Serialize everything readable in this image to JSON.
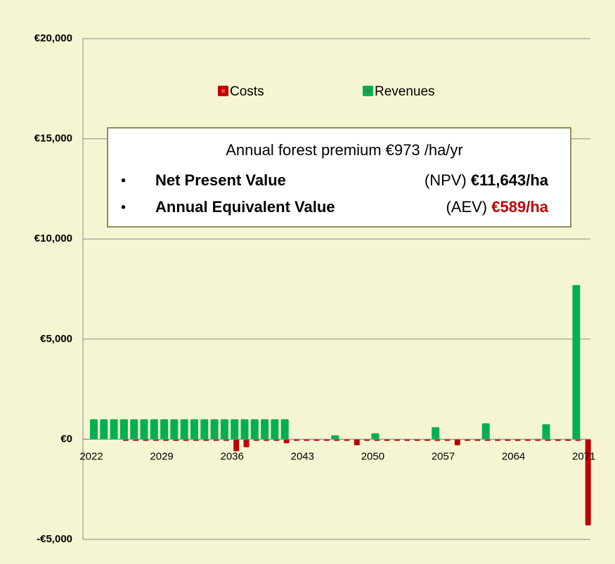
{
  "chart_data": {
    "type": "bar",
    "categories": [
      "2022",
      null,
      null,
      null,
      null,
      null,
      null,
      "2029",
      null,
      null,
      null,
      null,
      null,
      null,
      "2036",
      null,
      null,
      null,
      null,
      null,
      null,
      "2043",
      null,
      null,
      null,
      null,
      null,
      null,
      "2050",
      null,
      null,
      null,
      null,
      null,
      null,
      "2057",
      null,
      null,
      null,
      null,
      null,
      null,
      "2064",
      null,
      null,
      null,
      null,
      null,
      null,
      "2071"
    ],
    "series": [
      {
        "name": "Costs",
        "color": "#c00000",
        "values": [
          0,
          0,
          0,
          -80,
          -80,
          -80,
          -80,
          -80,
          -80,
          -80,
          -80,
          -80,
          -80,
          -80,
          -600,
          -400,
          -80,
          -80,
          -80,
          -200,
          -80,
          -80,
          -80,
          -80,
          -80,
          -80,
          -300,
          -80,
          -80,
          -80,
          -80,
          -80,
          -80,
          -80,
          -80,
          -80,
          -300,
          -80,
          -80,
          -80,
          -80,
          -80,
          -80,
          -80,
          -80,
          -80,
          -80,
          -80,
          -80,
          -4300
        ]
      },
      {
        "name": "Revenues",
        "color": "#00b050",
        "values": [
          1000,
          1000,
          1000,
          1000,
          1000,
          1000,
          1000,
          1000,
          1000,
          1000,
          1000,
          1000,
          1000,
          1000,
          1000,
          1000,
          1000,
          1000,
          1000,
          1000,
          0,
          0,
          0,
          0,
          200,
          0,
          0,
          0,
          300,
          0,
          0,
          0,
          0,
          0,
          600,
          0,
          0,
          0,
          0,
          800,
          0,
          0,
          0,
          0,
          0,
          750,
          0,
          0,
          7700,
          0
        ]
      }
    ],
    "ylim": [
      -5000,
      20000
    ],
    "yticks": [
      {
        "value": -5000,
        "label": "-€5,000"
      },
      {
        "value": 0,
        "label": "€0"
      },
      {
        "value": 5000,
        "label": "€5,000"
      },
      {
        "value": 10000,
        "label": "€10,000"
      },
      {
        "value": 15000,
        "label": "€15,000"
      },
      {
        "value": 20000,
        "label": "€20,000"
      }
    ],
    "grid": true,
    "annotation": {
      "title": "Annual forest premium €973 /ha/yr",
      "items": [
        {
          "label": "Net Present Value",
          "abbr": "(NPV)",
          "value": "€11,643/ha",
          "color": "#000000"
        },
        {
          "label": "Annual Equivalent Value",
          "abbr": "(AEV)",
          "value": "€589/ha",
          "color": "#c00000"
        }
      ]
    }
  }
}
